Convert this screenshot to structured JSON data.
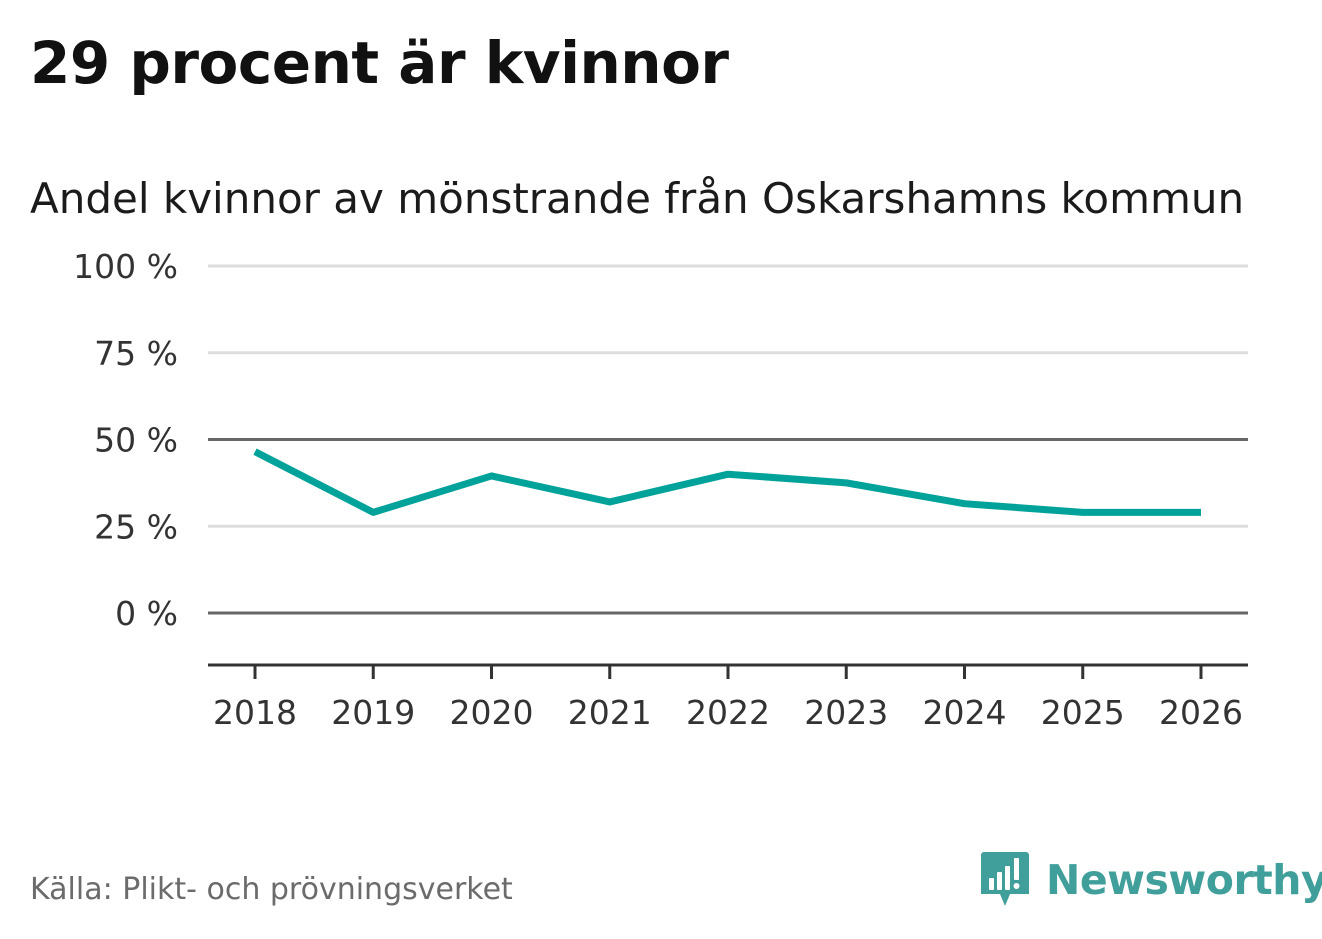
{
  "header": {
    "title": "29 procent är kvinnor",
    "subtitle": "Andel kvinnor av mönstrande från Oskarshamns kommun"
  },
  "footer": {
    "source": "Källa: Plikt- och prövningsverket",
    "brand": "Newsworthy"
  },
  "colors": {
    "line": "#00a29a",
    "brand": "#409f9a",
    "grid": "#dddddd",
    "reference": "#666666",
    "axis": "#333333"
  },
  "chart_data": {
    "type": "line",
    "title": "Andel kvinnor av mönstrande från Oskarshamns kommun",
    "xlabel": "",
    "ylabel": "",
    "x": [
      "2018",
      "2019",
      "2020",
      "2021",
      "2022",
      "2023",
      "2024",
      "2025",
      "2026"
    ],
    "series": [
      {
        "name": "Andel kvinnor",
        "values": [
          46.5,
          29,
          39.5,
          32,
          40,
          37.5,
          31.5,
          29,
          29
        ]
      }
    ],
    "ylim": [
      -15,
      100
    ],
    "yticks": [
      0,
      25,
      50,
      75,
      100
    ],
    "ytick_labels": [
      "0 %",
      "25 %",
      "50 %",
      "75 %",
      "100 %"
    ],
    "reference_lines": [
      0,
      50
    ],
    "grid": true,
    "legend": "none"
  }
}
